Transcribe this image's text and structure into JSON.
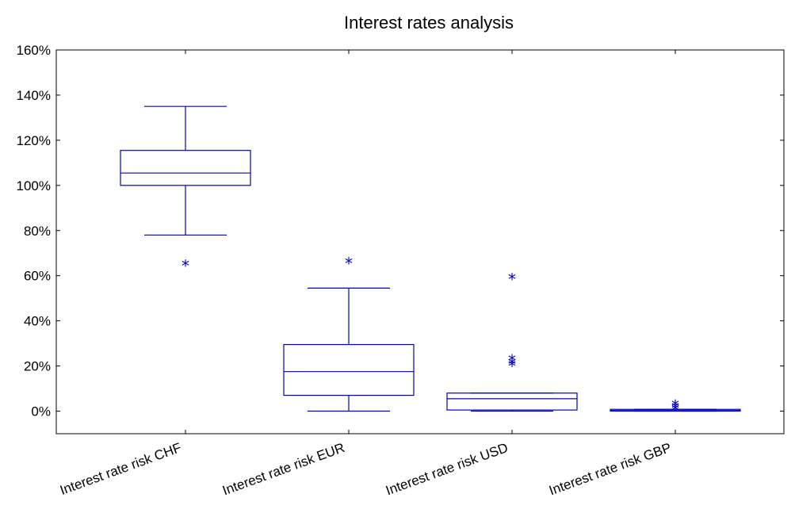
{
  "chart_data": {
    "type": "boxplot",
    "title": "Interest rates analysis",
    "xlabel": "",
    "ylabel": "",
    "ylim": [
      -0.1,
      1.6
    ],
    "yticks": [
      0,
      0.2,
      0.4,
      0.6,
      0.8,
      1.0,
      1.2,
      1.4,
      1.6
    ],
    "ytick_labels": [
      "0%",
      "20%",
      "40%",
      "60%",
      "80%",
      "100%",
      "120%",
      "140%",
      "160%"
    ],
    "grid": false,
    "color": "#0000cc",
    "categories": [
      "Interest rate risk CHF",
      "Interest rate risk EUR",
      "Interest rate risk USD",
      "Interest rate risk GBP"
    ],
    "boxes": [
      {
        "whisker_low": 0.78,
        "q1": 1.0,
        "median": 1.055,
        "q3": 1.155,
        "whisker_high": 1.35,
        "outliers": [
          0.65
        ]
      },
      {
        "whisker_low": 0.0,
        "q1": 0.07,
        "median": 0.175,
        "q3": 0.295,
        "whisker_high": 0.545,
        "outliers": [
          0.66
        ]
      },
      {
        "whisker_low": 0.0,
        "q1": 0.005,
        "median": 0.055,
        "q3": 0.08,
        "whisker_high": 0.08,
        "outliers": [
          0.59,
          0.23,
          0.215,
          0.205
        ]
      },
      {
        "whisker_low": 0.0,
        "q1": 0.0,
        "median": 0.003,
        "q3": 0.008,
        "whisker_high": 0.008,
        "outliers": [
          0.03,
          0.02,
          0.01
        ]
      }
    ]
  }
}
